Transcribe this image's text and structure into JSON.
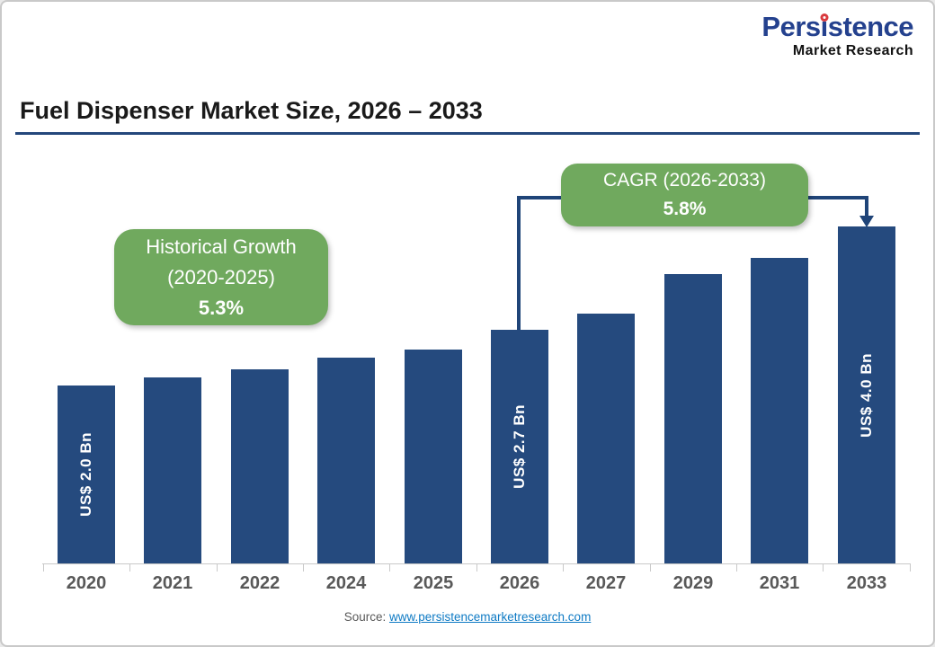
{
  "logo": {
    "part1": "Pers",
    "part2": "i",
    "part3": "stence",
    "sub": "Market Research"
  },
  "title": "Fuel Dispenser Market Size, 2026 – 2033",
  "annotations": {
    "historical": {
      "line1": "Historical Growth",
      "line2": "(2020-2025)",
      "value": "5.3%"
    },
    "cagr": {
      "line1": "CAGR (2026-2033)",
      "value": "5.8%"
    }
  },
  "source": {
    "label": "Source:",
    "link": "www.persistencemarketresearch.com"
  },
  "colors": {
    "bar": "#254a7e",
    "green": "#70a95e",
    "connector": "#1f4478",
    "rule": "#24477b",
    "axis": "#c9c9c9",
    "year": "#595959",
    "link": "#0e7ac4",
    "logo_blue": "#24418e",
    "logo_red": "#d93a3e"
  },
  "chart_data": {
    "type": "bar",
    "title": "Fuel Dispenser Market Size, 2026 – 2033",
    "unit": "US$ Bn",
    "categories": [
      "2020",
      "2021",
      "2022",
      "2024",
      "2025",
      "2026",
      "2027",
      "2029",
      "2031",
      "2033"
    ],
    "values": [
      2.0,
      2.1,
      2.2,
      2.35,
      2.45,
      2.7,
      2.9,
      3.4,
      3.6,
      4.0
    ],
    "bar_labels": [
      {
        "index": 0,
        "text": "US$ 2.0 Bn"
      },
      {
        "index": 5,
        "text": "US$ 2.7 Bn"
      },
      {
        "index": 9,
        "text": "US$ 4.0 Bn"
      }
    ],
    "annotations": [
      {
        "text": "Historical Growth (2020-2025) 5.3%"
      },
      {
        "text": "CAGR (2026-2033) 5.8%",
        "arrow_to": "2033"
      }
    ],
    "y_axis": "hidden",
    "grid": false,
    "legend": false
  }
}
